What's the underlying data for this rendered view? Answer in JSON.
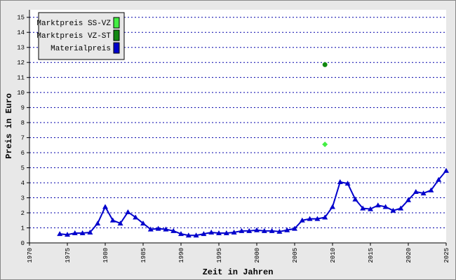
{
  "chart_data": {
    "type": "line",
    "x_label": "Zeit in Jahren",
    "y_label": "Preis in Euro",
    "xlim": [
      1970,
      2025
    ],
    "xticks": [
      1970,
      1975,
      1980,
      1985,
      1990,
      1995,
      2000,
      2005,
      2010,
      2015,
      2020,
      2025
    ],
    "ylim": [
      0,
      15.5
    ],
    "yticks": [
      0,
      1,
      2,
      3,
      4,
      5,
      6,
      7,
      8,
      9,
      10,
      11,
      12,
      13,
      14,
      15
    ],
    "grid": true,
    "legend_position": "upper-left",
    "series": [
      {
        "name": "Marktpreis SS-VZ",
        "color": "#44ee44",
        "marker": "diamond",
        "line": false,
        "x": [
          2009
        ],
        "values": [
          6.55
        ]
      },
      {
        "name": "Marktpreis VZ-ST",
        "color": "#118811",
        "marker": "circle",
        "line": false,
        "x": [
          2009
        ],
        "values": [
          11.85
        ]
      },
      {
        "name": "Materialpreis",
        "color": "#0000cc",
        "marker": "triangle",
        "line": true,
        "x": [
          1974,
          1975,
          1976,
          1977,
          1978,
          1979,
          1980,
          1981,
          1982,
          1983,
          1984,
          1985,
          1986,
          1987,
          1988,
          1989,
          1990,
          1991,
          1992,
          1993,
          1994,
          1995,
          1996,
          1997,
          1998,
          1999,
          2000,
          2001,
          2002,
          2003,
          2004,
          2005,
          2006,
          2007,
          2008,
          2009,
          2010,
          2011,
          2012,
          2013,
          2014,
          2015,
          2016,
          2017,
          2018,
          2019,
          2020,
          2021,
          2022,
          2023,
          2024,
          2025
        ],
        "values": [
          0.6,
          0.55,
          0.65,
          0.65,
          0.7,
          1.3,
          2.4,
          1.5,
          1.3,
          2.05,
          1.7,
          1.3,
          0.9,
          0.95,
          0.9,
          0.8,
          0.6,
          0.5,
          0.5,
          0.6,
          0.7,
          0.65,
          0.65,
          0.7,
          0.8,
          0.8,
          0.85,
          0.8,
          0.8,
          0.75,
          0.85,
          0.95,
          1.5,
          1.6,
          1.6,
          1.7,
          2.4,
          4.05,
          3.95,
          2.9,
          2.3,
          2.25,
          2.5,
          2.4,
          2.15,
          2.3,
          2.85,
          3.4,
          3.3,
          3.5,
          4.2,
          4.8
        ]
      }
    ]
  }
}
